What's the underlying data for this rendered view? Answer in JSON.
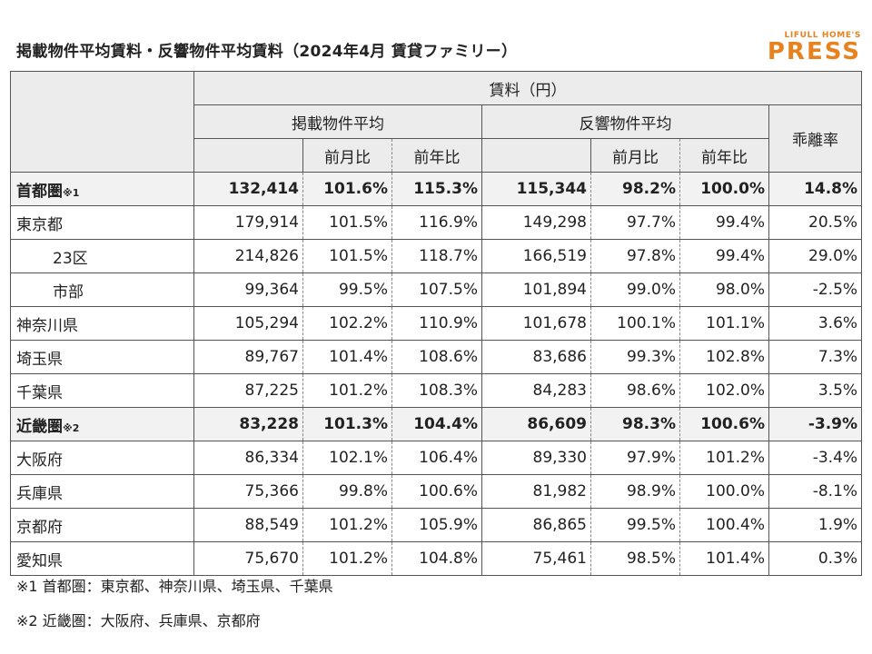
{
  "title": "掲載物件平均賃料・反響物件平均賃料（2024年4月 賃貸ファミリー）",
  "logo": {
    "top": "LIFULL HOME'S",
    "main": "PRESS"
  },
  "header": {
    "group": "賃料（円）",
    "listing": "掲載物件平均",
    "response": "反響物件平均",
    "deviation": "乖離率",
    "mom": "前月比",
    "yoy": "前年比"
  },
  "rows": [
    {
      "name": "首都圏",
      "note": "※1",
      "bold": true,
      "cells": [
        "132,414",
        "101.6%",
        "115.3%",
        "115,344",
        "98.2%",
        "100.0%",
        "14.8%"
      ]
    },
    {
      "name": "東京都",
      "cells": [
        "179,914",
        "101.5%",
        "116.9%",
        "149,298",
        "97.7%",
        "99.4%",
        "20.5%"
      ]
    },
    {
      "name": "23区",
      "sub": true,
      "cells": [
        "214,826",
        "101.5%",
        "118.7%",
        "166,519",
        "97.8%",
        "99.4%",
        "29.0%"
      ]
    },
    {
      "name": "市部",
      "sub": true,
      "cells": [
        "99,364",
        "99.5%",
        "107.5%",
        "101,894",
        "99.0%",
        "98.0%",
        "-2.5%"
      ]
    },
    {
      "name": "神奈川県",
      "cells": [
        "105,294",
        "102.2%",
        "110.9%",
        "101,678",
        "100.1%",
        "101.1%",
        "3.6%"
      ]
    },
    {
      "name": "埼玉県",
      "cells": [
        "89,767",
        "101.4%",
        "108.6%",
        "83,686",
        "99.3%",
        "102.8%",
        "7.3%"
      ]
    },
    {
      "name": "千葉県",
      "cells": [
        "87,225",
        "101.2%",
        "108.3%",
        "84,283",
        "98.6%",
        "102.0%",
        "3.5%"
      ]
    },
    {
      "name": "近畿圏",
      "note": "※2",
      "bold": true,
      "cells": [
        "83,228",
        "101.3%",
        "104.4%",
        "86,609",
        "98.3%",
        "100.6%",
        "-3.9%"
      ]
    },
    {
      "name": "大阪府",
      "cells": [
        "86,334",
        "102.1%",
        "106.4%",
        "89,330",
        "97.9%",
        "101.2%",
        "-3.4%"
      ]
    },
    {
      "name": "兵庫県",
      "cells": [
        "75,366",
        "99.8%",
        "100.6%",
        "81,982",
        "98.9%",
        "100.0%",
        "-8.1%"
      ]
    },
    {
      "name": "京都府",
      "cells": [
        "88,549",
        "101.2%",
        "105.9%",
        "86,865",
        "99.5%",
        "100.4%",
        "1.9%"
      ]
    },
    {
      "name": "愛知県",
      "cells": [
        "75,670",
        "101.2%",
        "104.8%",
        "75,461",
        "98.5%",
        "101.4%",
        "0.3%"
      ]
    }
  ],
  "footnotes": [
    "※1 首都圏：東京都、神奈川県、埼玉県、千葉県",
    "※2 近畿圏：大阪府、兵庫県、京都府"
  ]
}
